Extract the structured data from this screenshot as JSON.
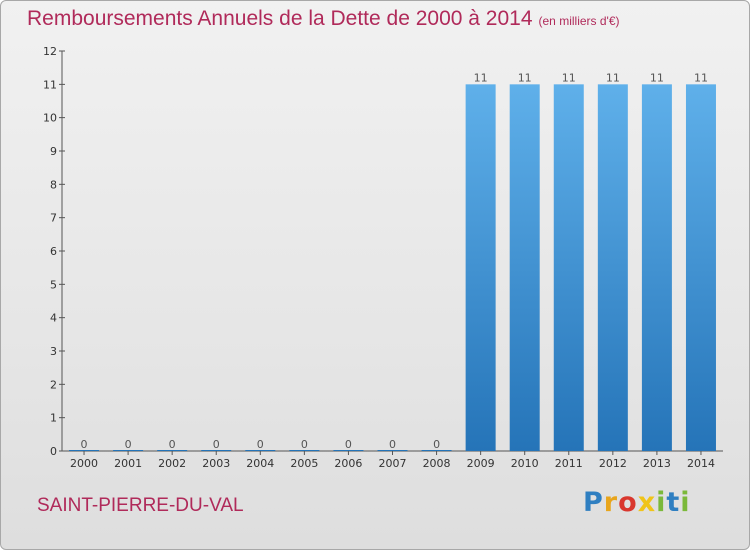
{
  "header": {
    "title": "Remboursements Annuels de la Dette de 2000 à 2014",
    "unit": "(en milliers d'€)"
  },
  "footer": {
    "commune": "SAINT-PIERRE-DU-VAL",
    "logo_letters": [
      "P",
      "r",
      "o",
      "x",
      "i",
      "t",
      "i"
    ],
    "logo_colors": [
      "#2f7fc1",
      "#e8a51c",
      "#d9372e",
      "#f0c419",
      "#7bb93a",
      "#2f7fc1",
      "#7bb93a"
    ]
  },
  "colors": {
    "title": "#b02a5a",
    "bar_top": "#5fb0ea",
    "bar_bottom": "#2574b8"
  },
  "chart_data": {
    "type": "bar",
    "categories": [
      "2000",
      "2001",
      "2002",
      "2003",
      "2004",
      "2005",
      "2006",
      "2007",
      "2008",
      "2009",
      "2010",
      "2011",
      "2012",
      "2013",
      "2014"
    ],
    "values": [
      0,
      0,
      0,
      0,
      0,
      0,
      0,
      0,
      0,
      11,
      11,
      11,
      11,
      11,
      11
    ],
    "data_labels": [
      "0",
      "0",
      "0",
      "0",
      "0",
      "0",
      "0",
      "0",
      "0",
      "11",
      "11",
      "11",
      "11",
      "11",
      "11"
    ],
    "title": "Remboursements Annuels de la Dette de 2000 à 2014",
    "subtitle": "(en milliers d'€)",
    "xlabel": "",
    "ylabel": "",
    "ylim": [
      0,
      12
    ],
    "yticks": [
      0,
      1,
      2,
      3,
      4,
      5,
      6,
      7,
      8,
      9,
      10,
      11,
      12
    ],
    "grid": false,
    "legend": "none"
  }
}
